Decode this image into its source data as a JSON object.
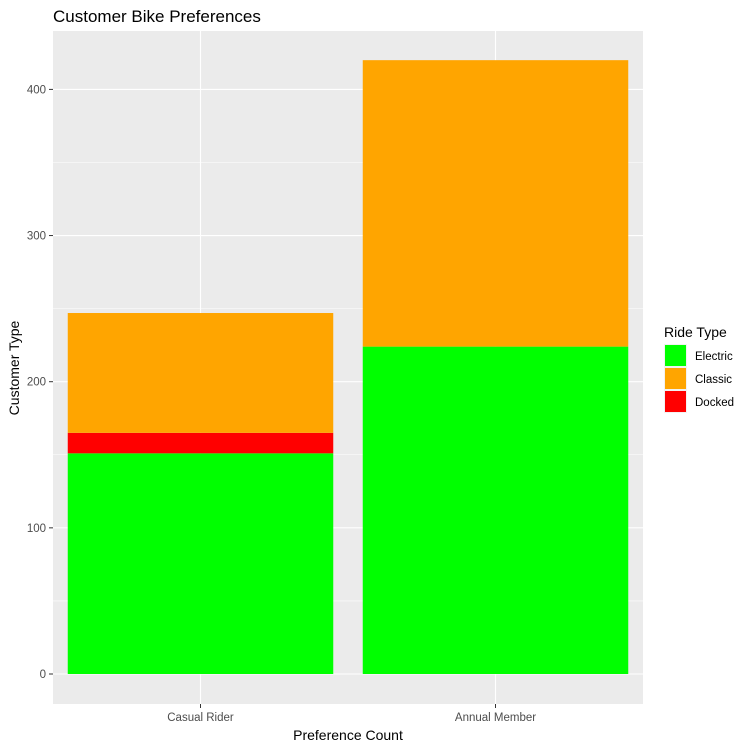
{
  "chart_data": {
    "type": "bar",
    "stacked": true,
    "title": "Customer Bike Preferences",
    "xlabel": "Preference Count",
    "ylabel": "Customer Type",
    "categories": [
      "Casual Rider",
      "Annual Member"
    ],
    "series": [
      {
        "name": "Electric",
        "color": "#00ff00",
        "values": [
          151,
          224
        ]
      },
      {
        "name": "Docked",
        "color": "#ff0000",
        "values": [
          14,
          0
        ]
      },
      {
        "name": "Classic",
        "color": "#ffa500",
        "values": [
          82,
          196
        ]
      }
    ],
    "ylim": [
      0,
      430
    ],
    "yticks": [
      0,
      100,
      200,
      300,
      400
    ],
    "grid": true,
    "background": "#ebebeb",
    "legend": {
      "title": "Ride Type",
      "position": "right",
      "entries": [
        {
          "label": "Electric",
          "color": "#00ff00"
        },
        {
          "label": "Classic",
          "color": "#ffa500"
        },
        {
          "label": "Docked",
          "color": "#ff0000"
        }
      ]
    }
  }
}
